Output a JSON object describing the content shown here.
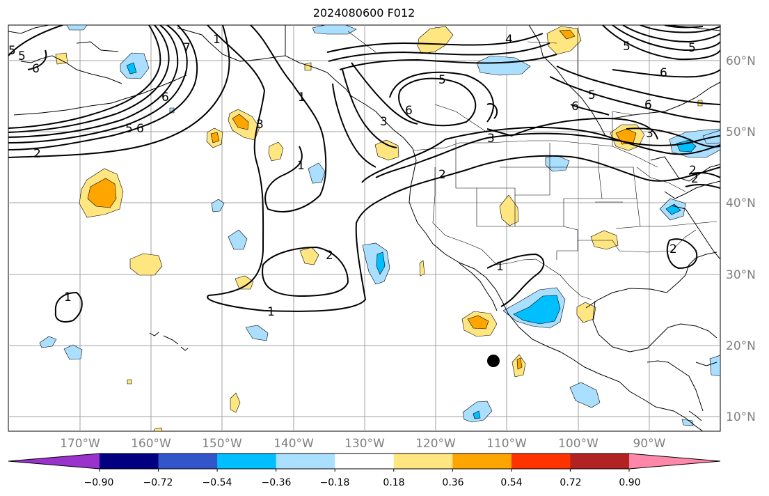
{
  "title": "2024080600 F012",
  "map": {
    "lat_labels": [
      "60°N",
      "50°N",
      "40°N",
      "30°N",
      "20°N",
      "10°N"
    ],
    "lon_labels": [
      "170°W",
      "160°W",
      "150°W",
      "140°W",
      "130°W",
      "120°W",
      "110°W",
      "100°W",
      "90°W"
    ],
    "contour_labels": [
      "5",
      "6",
      "7",
      "6",
      "5",
      "6",
      "5",
      "4",
      "6",
      "5",
      "3",
      "2",
      "1",
      "1",
      "1",
      "2",
      "3",
      "5",
      "6",
      "5",
      "6",
      "6",
      "5",
      "3",
      "2",
      "1",
      "2",
      "3",
      "2",
      "1",
      "2",
      "1"
    ]
  },
  "colorbar": {
    "colors": [
      "#9933cc",
      "#000080",
      "#3355cc",
      "#00bfff",
      "#aadfff",
      "#ffffff",
      "#ffe680",
      "#ffa500",
      "#ff3300",
      "#b22222",
      "#ff88aa"
    ],
    "tick_labels": [
      "−0.90",
      "−0.72",
      "−0.54",
      "−0.36",
      "−0.18",
      "0.18",
      "0.36",
      "0.54",
      "0.72",
      "0.90"
    ]
  }
}
